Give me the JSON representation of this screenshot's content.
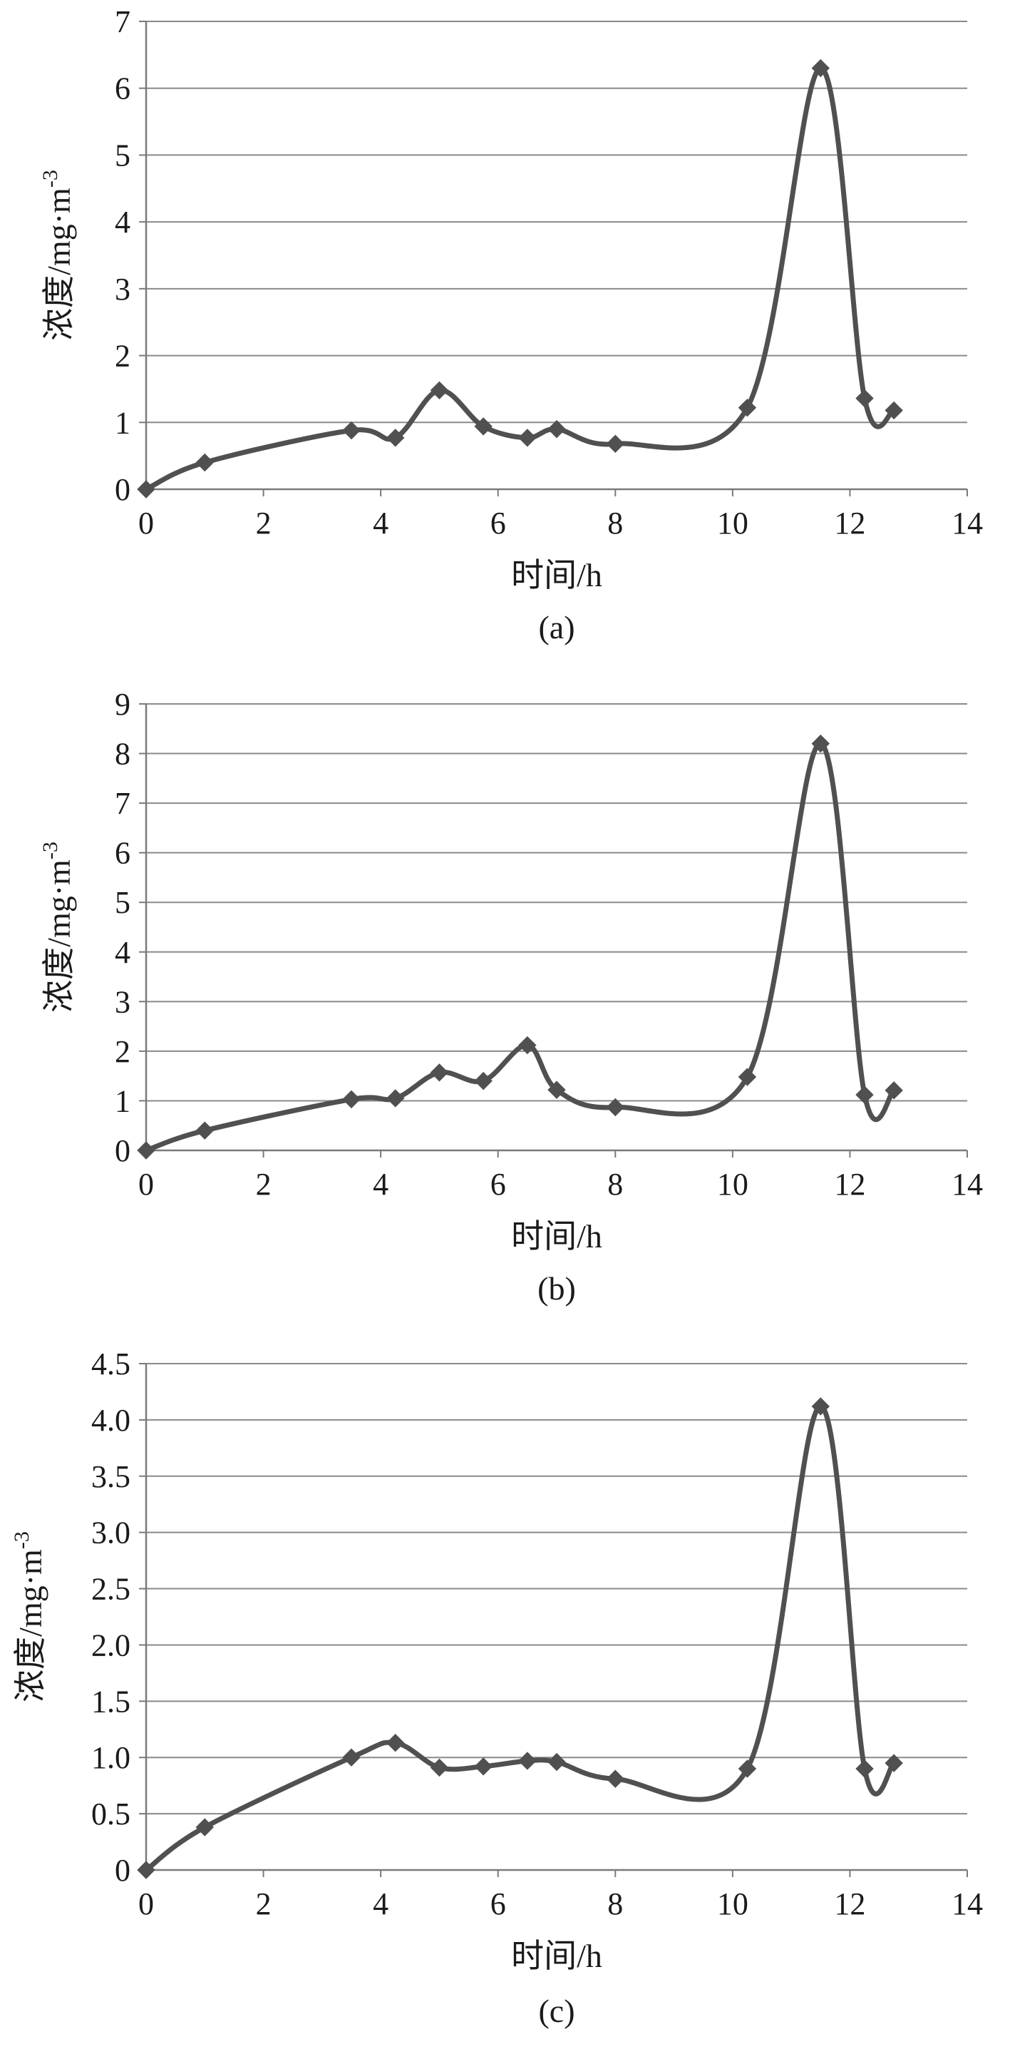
{
  "colors": {
    "line": "#505050",
    "marker": "#505050",
    "grid": "#8a8a8a",
    "axis": "#7a7a7a",
    "text": "#1a1a1a"
  },
  "chart_data": [
    {
      "type": "line",
      "caption": "(a)",
      "xlabel": "时间/h",
      "ylabel": "浓度/mg·m",
      "ylabel_superscript": "-3",
      "xlim": [
        0,
        14
      ],
      "ylim": [
        0,
        7
      ],
      "x_ticks": [
        "0",
        "2",
        "4",
        "6",
        "8",
        "10",
        "12",
        "14"
      ],
      "y_ticks": [
        "0",
        "1",
        "2",
        "3",
        "4",
        "5",
        "6",
        "7"
      ],
      "grid": true,
      "smooth": true,
      "marker": "diamond",
      "x": [
        0,
        1,
        3.5,
        4.25,
        5,
        5.75,
        6.5,
        7,
        8,
        10.25,
        11.5,
        12.25,
        12.75
      ],
      "y": [
        0,
        0.4,
        0.88,
        0.77,
        1.48,
        0.94,
        0.77,
        0.9,
        0.68,
        1.22,
        6.3,
        1.36,
        1.18
      ]
    },
    {
      "type": "line",
      "caption": "(b)",
      "xlabel": "时间/h",
      "ylabel": "浓度/mg·m",
      "ylabel_superscript": "-3",
      "xlim": [
        0,
        14
      ],
      "ylim": [
        0,
        9
      ],
      "x_ticks": [
        "0",
        "2",
        "4",
        "6",
        "8",
        "10",
        "12",
        "14"
      ],
      "y_ticks": [
        "0",
        "1",
        "2",
        "3",
        "4",
        "5",
        "6",
        "7",
        "8",
        "9"
      ],
      "grid": true,
      "smooth": true,
      "marker": "diamond",
      "x": [
        0,
        1,
        3.5,
        4.25,
        5,
        5.75,
        6.5,
        7,
        8,
        10.25,
        11.5,
        12.25,
        12.75
      ],
      "y": [
        0,
        0.4,
        1.03,
        1.05,
        1.57,
        1.4,
        2.12,
        1.22,
        0.87,
        1.48,
        8.2,
        1.12,
        1.21
      ]
    },
    {
      "type": "line",
      "caption": "(c)",
      "xlabel": "时间/h",
      "ylabel": "浓度/mg·m",
      "ylabel_superscript": "-3",
      "xlim": [
        0,
        14
      ],
      "ylim": [
        0,
        4.5
      ],
      "x_ticks": [
        "0",
        "2",
        "4",
        "6",
        "8",
        "10",
        "12",
        "14"
      ],
      "y_ticks": [
        "0",
        "0.5",
        "1.0",
        "1.5",
        "2.0",
        "2.5",
        "3.0",
        "3.5",
        "4.0",
        "4.5"
      ],
      "grid": true,
      "smooth": true,
      "marker": "diamond",
      "x": [
        0,
        1,
        3.5,
        4.25,
        5,
        5.75,
        6.5,
        7,
        8,
        10.25,
        11.5,
        12.25,
        12.75
      ],
      "y": [
        0,
        0.38,
        1.0,
        1.13,
        0.91,
        0.92,
        0.97,
        0.96,
        0.81,
        0.9,
        4.12,
        0.9,
        0.95
      ]
    }
  ]
}
